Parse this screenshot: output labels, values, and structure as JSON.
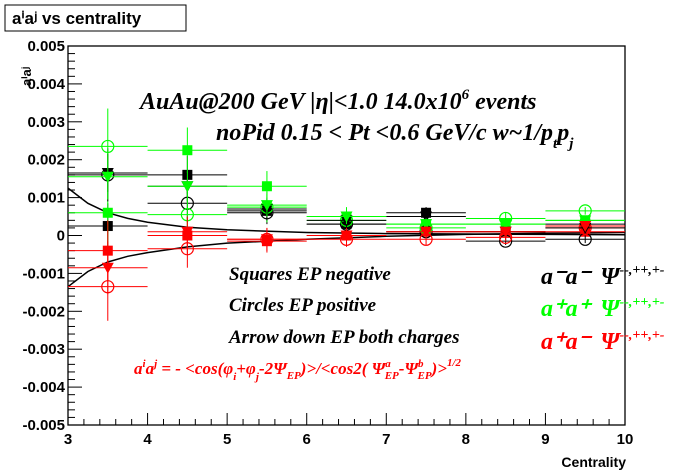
{
  "chart_data": {
    "type": "scatter",
    "title": "aⁱaʲ vs centrality",
    "xlabel": "Centrality",
    "ylabel": "aⁱaʲ",
    "xlim": [
      3,
      10
    ],
    "ylim": [
      -0.005,
      0.005
    ],
    "x_ticks": [
      "3",
      "4",
      "5",
      "6",
      "7",
      "8",
      "9",
      "10"
    ],
    "y_ticks": [
      "-0.005",
      "-0.004",
      "-0.003",
      "-0.002",
      "-0.001",
      "0",
      "0.001",
      "0.002",
      "0.003",
      "0.004",
      "0.005"
    ],
    "grid": false,
    "annotations": {
      "line1": "AuAu@200 GeV |η|<1.0 14.0x10",
      "line1_sup": "6",
      "line1_tail": " events",
      "line2": "noPid 0.15 < Pt <0.6 GeV/c w~1/p",
      "line2_sub1": "t",
      "line2_mid": "p",
      "line2_sub2": "j",
      "legend_squares": "Squares EP negative",
      "legend_circles": "Circles EP positive",
      "legend_arrow": "Arrow down EP both charges",
      "formula_a": "a",
      "formula_a_sup": "i",
      "formula_a2": "a",
      "formula_a2_sup": "j",
      "formula_body": " = - <cos(φ",
      "formula_phi_i": "i",
      "formula_plus": "+φ",
      "formula_phi_j": "j",
      "formula_minus": "-2Ψ",
      "formula_ep": "EP",
      "formula_tail": ")>/<cos2( Ψ",
      "formula_a_ep_sup": "a",
      "formula_a_ep_sub": "EP",
      "formula_dash": "-Ψ",
      "formula_b_ep_sup": "b",
      "formula_b_ep_sub": "EP",
      "formula_close": ")>",
      "formula_pow": "1/2",
      "pair_mm": "a⁻a⁻",
      "pair_mm_psi": "Ψ",
      "pair_mm_sup": "--,++,+-",
      "pair_pp": "a⁺a⁺",
      "pair_pp_psi": "Ψ",
      "pair_pp_sup": "--,++,+-",
      "pair_pm": "a⁺a⁻",
      "pair_pm_psi": "Ψ",
      "pair_pm_sup": "--,++,+-"
    },
    "colors": {
      "black": "#000000",
      "green": "#00ff00",
      "red": "#ff0000"
    },
    "series": [
      {
        "color": "black",
        "marker": "square-filled",
        "points": [
          {
            "x": 3.5,
            "y": 0.00025,
            "ey": 0.0006
          },
          {
            "x": 4.5,
            "y": 0.0016,
            "ey": 0.0005
          },
          {
            "x": 5.5,
            "y": 0.00065,
            "ey": 0.0003
          },
          {
            "x": 6.5,
            "y": 0.0003,
            "ey": 0.0002
          },
          {
            "x": 7.5,
            "y": 0.0006,
            "ey": 0.00015
          },
          {
            "x": 8.5,
            "y": 0.0001,
            "ey": 0.0001
          },
          {
            "x": 9.5,
            "y": 0.0003,
            "ey": 0.0001
          }
        ]
      },
      {
        "color": "green",
        "marker": "square-filled",
        "points": [
          {
            "x": 3.5,
            "y": 0.0006,
            "ey": 0.0009
          },
          {
            "x": 4.5,
            "y": 0.00225,
            "ey": 0.0006
          },
          {
            "x": 5.5,
            "y": 0.0013,
            "ey": 0.0004
          },
          {
            "x": 6.5,
            "y": 0.0005,
            "ey": 0.00025
          },
          {
            "x": 7.5,
            "y": 0.0003,
            "ey": 0.0002
          },
          {
            "x": 8.5,
            "y": 0.0003,
            "ey": 0.00015
          },
          {
            "x": 9.5,
            "y": 0.0004,
            "ey": 0.0001
          }
        ]
      },
      {
        "color": "red",
        "marker": "square-filled",
        "points": [
          {
            "x": 3.5,
            "y": -0.0004,
            "ey": 0.0008
          },
          {
            "x": 4.5,
            "y": 0.0,
            "ey": 0.0005
          },
          {
            "x": 5.5,
            "y": -0.00015,
            "ey": 0.0003
          },
          {
            "x": 6.5,
            "y": 0.0,
            "ey": 0.0002
          },
          {
            "x": 7.5,
            "y": 0.0001,
            "ey": 0.00015
          },
          {
            "x": 8.5,
            "y": 0.0001,
            "ey": 0.0001
          },
          {
            "x": 9.5,
            "y": 0.0001,
            "ey": 0.0001
          }
        ]
      },
      {
        "color": "black",
        "marker": "circle-open",
        "points": [
          {
            "x": 3.5,
            "y": 0.0016,
            "ey": 0.0007
          },
          {
            "x": 4.5,
            "y": 0.00085,
            "ey": 0.0005
          },
          {
            "x": 5.5,
            "y": 0.0006,
            "ey": 0.0003
          },
          {
            "x": 6.5,
            "y": 0.0003,
            "ey": 0.0002
          },
          {
            "x": 7.5,
            "y": 0.0001,
            "ey": 0.00015
          },
          {
            "x": 8.5,
            "y": -0.00015,
            "ey": 0.0001
          },
          {
            "x": 9.5,
            "y": -0.0001,
            "ey": 0.0001
          }
        ]
      },
      {
        "color": "green",
        "marker": "circle-open",
        "points": [
          {
            "x": 3.5,
            "y": 0.00235,
            "ey": 0.001
          },
          {
            "x": 4.5,
            "y": 0.00055,
            "ey": 0.0006
          },
          {
            "x": 5.5,
            "y": 0.00075,
            "ey": 0.0004
          },
          {
            "x": 6.5,
            "y": 0.0004,
            "ey": 0.00025
          },
          {
            "x": 7.5,
            "y": 0.0002,
            "ey": 0.0002
          },
          {
            "x": 8.5,
            "y": 0.00045,
            "ey": 0.00015
          },
          {
            "x": 9.5,
            "y": 0.00065,
            "ey": 0.0001
          }
        ]
      },
      {
        "color": "red",
        "marker": "circle-open",
        "points": [
          {
            "x": 3.5,
            "y": -0.00135,
            "ey": 0.0009
          },
          {
            "x": 4.5,
            "y": -0.00035,
            "ey": 0.0005
          },
          {
            "x": 5.5,
            "y": -0.0001,
            "ey": 0.0003
          },
          {
            "x": 6.5,
            "y": -0.0001,
            "ey": 0.0002
          },
          {
            "x": 7.5,
            "y": -0.0001,
            "ey": 0.00015
          },
          {
            "x": 8.5,
            "y": -5e-05,
            "ey": 0.0001
          },
          {
            "x": 9.5,
            "y": 0.0002,
            "ey": 0.0001
          }
        ]
      },
      {
        "color": "black",
        "marker": "triangle-down",
        "points": [
          {
            "x": 3.5,
            "y": 0.00165,
            "ey": 0.0005
          },
          {
            "x": 4.5,
            "y": 0.0013,
            "ey": 0.0004
          },
          {
            "x": 5.5,
            "y": 0.0007,
            "ey": 0.0003
          },
          {
            "x": 6.5,
            "y": 0.0004,
            "ey": 0.0002
          },
          {
            "x": 7.5,
            "y": 0.0005,
            "ey": 0.00015
          },
          {
            "x": 8.5,
            "y": 0.0001,
            "ey": 0.0001
          },
          {
            "x": 9.5,
            "y": 0.0002,
            "ey": 0.0001
          }
        ]
      },
      {
        "color": "green",
        "marker": "triangle-down",
        "points": [
          {
            "x": 3.5,
            "y": 0.00155,
            "ey": 0.0006
          },
          {
            "x": 4.5,
            "y": 0.0013,
            "ey": 0.0004
          },
          {
            "x": 5.5,
            "y": 0.0008,
            "ey": 0.0003
          },
          {
            "x": 6.5,
            "y": 0.0005,
            "ey": 0.0002
          },
          {
            "x": 7.5,
            "y": 0.0003,
            "ey": 0.00015
          },
          {
            "x": 8.5,
            "y": 0.0003,
            "ey": 0.0001
          },
          {
            "x": 9.5,
            "y": 0.0004,
            "ey": 0.0001
          }
        ]
      },
      {
        "color": "red",
        "marker": "triangle-down",
        "points": [
          {
            "x": 3.5,
            "y": -0.00085,
            "ey": 0.0007
          },
          {
            "x": 4.5,
            "y": 0.0001,
            "ey": 0.0004
          },
          {
            "x": 5.5,
            "y": -0.0001,
            "ey": 0.0003
          },
          {
            "x": 6.5,
            "y": 0.0,
            "ey": 0.0002
          },
          {
            "x": 7.5,
            "y": 0.0001,
            "ey": 0.00015
          },
          {
            "x": 8.5,
            "y": 0.0001,
            "ey": 0.0001
          },
          {
            "x": 9.5,
            "y": 0.00025,
            "ey": 0.0001
          }
        ]
      }
    ],
    "curves": [
      {
        "color": "black",
        "points": [
          [
            3.0,
            0.00125
          ],
          [
            3.25,
            0.00085
          ],
          [
            3.5,
            0.0006
          ],
          [
            3.75,
            0.00045
          ],
          [
            4.0,
            0.00035
          ],
          [
            4.5,
            0.00022
          ],
          [
            5.0,
            0.00015
          ],
          [
            6.0,
            8e-05
          ],
          [
            7.0,
            5e-05
          ],
          [
            8.0,
            4e-05
          ],
          [
            9.0,
            3e-05
          ],
          [
            10.0,
            2e-05
          ]
        ]
      },
      {
        "color": "black",
        "points": [
          [
            3.0,
            -0.00135
          ],
          [
            3.25,
            -0.00095
          ],
          [
            3.5,
            -0.0007
          ],
          [
            3.75,
            -0.00055
          ],
          [
            4.0,
            -0.00045
          ],
          [
            4.5,
            -0.0003
          ],
          [
            5.0,
            -0.0002
          ],
          [
            6.0,
            -0.0001
          ],
          [
            7.0,
            -2e-05
          ],
          [
            8.0,
            3e-05
          ],
          [
            9.0,
            6e-05
          ],
          [
            10.0,
            8e-05
          ]
        ]
      }
    ]
  }
}
